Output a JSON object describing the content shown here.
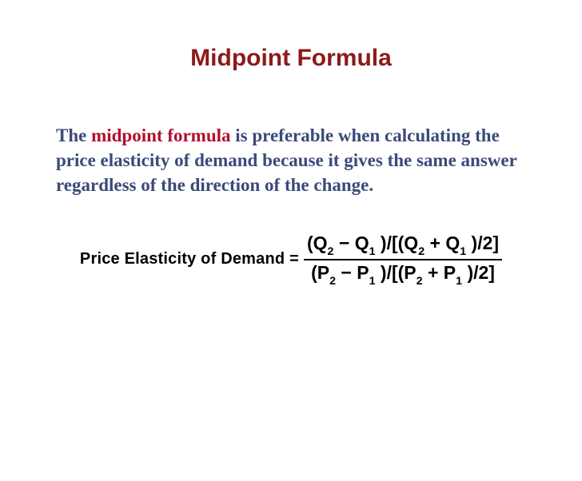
{
  "colors": {
    "title": "#8b1a1a",
    "accent": "#b01030",
    "body": "#3b4a7a",
    "formula": "#000000",
    "background": "#ffffff"
  },
  "typography": {
    "title_fontsize": 30,
    "body_fontsize": 23,
    "formula_label_fontsize": 20,
    "formula_fontsize": 23
  },
  "title": "Midpoint Formula",
  "paragraph": {
    "lead": "The ",
    "accent": "midpoint formula",
    "rest": " is preferable when calculating the price elasticity of demand because it gives the same answer regardless of the direction of the change."
  },
  "formula": {
    "label": "Price Elasticity of Demand =",
    "numerator": {
      "lhs_open": "(Q",
      "lhs_sub1": "2",
      "minus": " − ",
      "lhs_q2": "Q",
      "lhs_sub2": "1",
      "lhs_close": " )/[",
      "rhs_open": "(Q",
      "rhs_sub1": "2",
      "plus": " + ",
      "rhs_q2": "Q",
      "rhs_sub2": "1",
      "rhs_close": " )/2]"
    },
    "denominator": {
      "lhs_open": "(P",
      "lhs_sub1": "2",
      "minus": " − ",
      "lhs_p2": "P",
      "lhs_sub2": "1",
      "lhs_close": " )/[",
      "rhs_open": "(P",
      "rhs_sub1": "2",
      "plus": " + ",
      "rhs_p2": "P",
      "rhs_sub2": "1",
      "rhs_close": " )/2]"
    }
  }
}
